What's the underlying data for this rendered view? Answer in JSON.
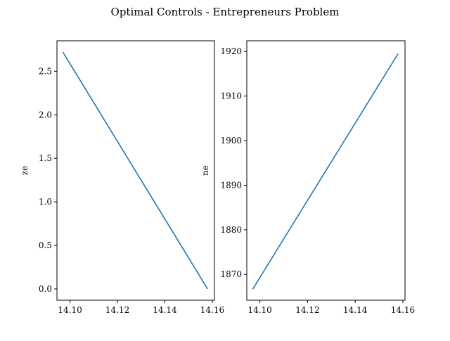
{
  "figure": {
    "suptitle": "Optimal Controls - Entrepreneurs Problem"
  },
  "chart_data": [
    {
      "type": "line",
      "title": "",
      "xlabel": "",
      "ylabel": "ze",
      "grid": false,
      "line_color": "#1f77b4",
      "xlim": [
        14.0945,
        14.1609
      ],
      "ylim": [
        -0.13,
        2.85
      ],
      "xticks": [
        14.1,
        14.12,
        14.14,
        14.16
      ],
      "xtick_labels": [
        "14.10",
        "14.12",
        "14.14",
        "14.16"
      ],
      "yticks": [
        0.0,
        0.5,
        1.0,
        1.5,
        2.0,
        2.5
      ],
      "ytick_labels": [
        "0.0",
        "0.5",
        "1.0",
        "1.5",
        "2.0",
        "2.5"
      ],
      "series": [
        {
          "x": [
            14.097,
            14.158
          ],
          "y": [
            2.72,
            0.0
          ]
        }
      ]
    },
    {
      "type": "line",
      "title": "",
      "xlabel": "",
      "ylabel": "ne",
      "grid": false,
      "line_color": "#1f77b4",
      "xlim": [
        14.0945,
        14.1609
      ],
      "ylim": [
        1864.2,
        1922.4
      ],
      "xticks": [
        14.1,
        14.12,
        14.14,
        14.16
      ],
      "xtick_labels": [
        "14.10",
        "14.12",
        "14.14",
        "14.16"
      ],
      "yticks": [
        1870,
        1880,
        1890,
        1900,
        1910,
        1920
      ],
      "ytick_labels": [
        "1870",
        "1880",
        "1890",
        "1900",
        "1910",
        "1920"
      ],
      "series": [
        {
          "x": [
            14.097,
            14.158
          ],
          "y": [
            1866.7,
            1919.5
          ]
        }
      ]
    }
  ]
}
